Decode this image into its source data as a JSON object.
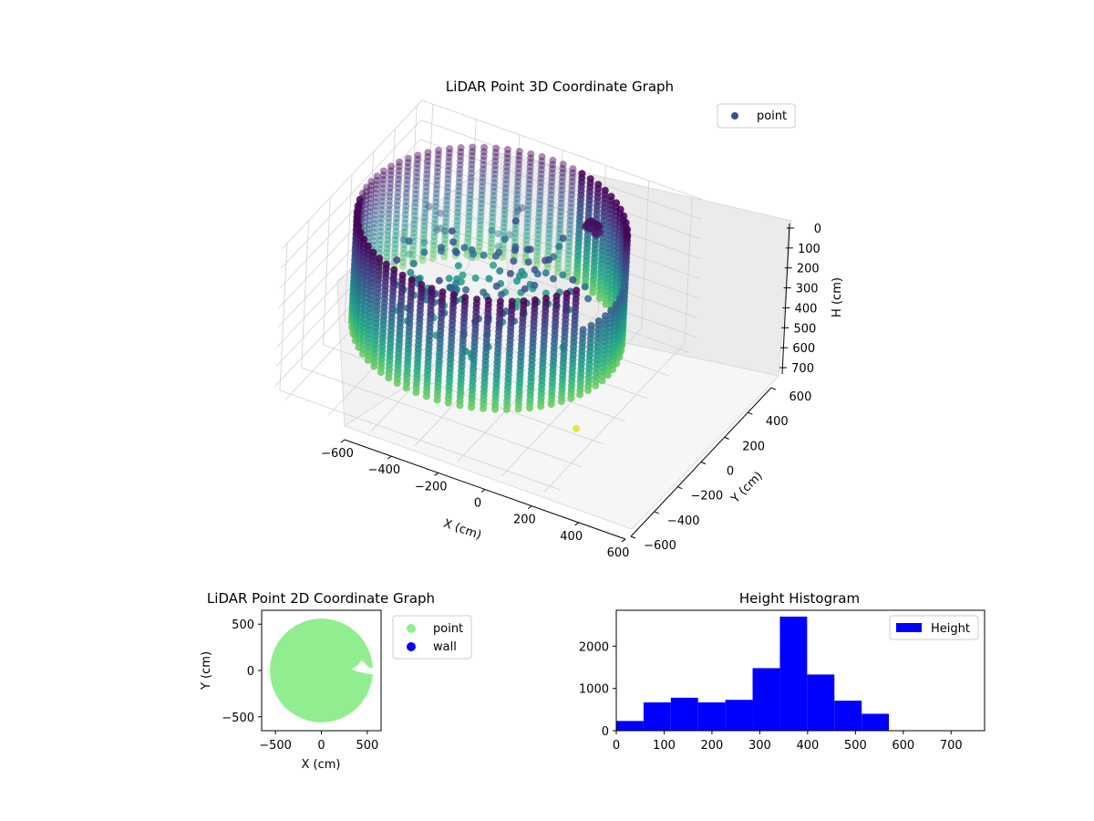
{
  "figure": {
    "background": "#ffffff"
  },
  "chart_data": [
    {
      "type": "scatter",
      "projection": "3d",
      "title": "LiDAR Point 3D Coordinate Graph",
      "xlabel": "X (cm)",
      "ylabel": "Y (cm)",
      "zlabel": "H (cm)",
      "x_ticks": [
        "−600",
        "−400",
        "−200",
        "0",
        "200",
        "400",
        "600"
      ],
      "y_ticks": [
        "−600",
        "−400",
        "−200",
        "0",
        "200",
        "400",
        "600"
      ],
      "z_ticks": [
        "0",
        "100",
        "200",
        "300",
        "400",
        "500",
        "600",
        "700"
      ],
      "xlim": [
        -650,
        650
      ],
      "ylim": [
        -650,
        650
      ],
      "zlim": [
        750,
        0
      ],
      "z_axis_inverted": true,
      "grid": true,
      "colormap": "viridis",
      "legend": {
        "entries": [
          "point"
        ],
        "placement": "upper-right",
        "marker_color": "#3b4f8a"
      },
      "structure": "points on a circular wall of radius about 560 cm around the sensor, spanning heights about 0 to 570 cm, plus a scattered interior cluster"
    },
    {
      "type": "scatter",
      "title": "LiDAR Point 2D Coordinate Graph",
      "xlabel": "X (cm)",
      "ylabel": "Y (cm)",
      "x_ticks": [
        "−500",
        "0",
        "500"
      ],
      "y_ticks": [
        "500",
        "0",
        "−500"
      ],
      "xlim": [
        -650,
        650
      ],
      "ylim": [
        -650,
        650
      ],
      "series": [
        {
          "name": "point",
          "color": "#90ee90",
          "shape": "filled disc of radius about 560 cm centred near (0, 0), with a small notch near x 300 to 600, y 0"
        },
        {
          "name": "wall",
          "color": "#0000ff"
        }
      ],
      "legend": {
        "placement": "outside right"
      }
    },
    {
      "type": "bar",
      "subtype": "histogram",
      "title": "Height Histogram",
      "x_ticks": [
        "0",
        "100",
        "200",
        "300",
        "400",
        "500",
        "600",
        "700"
      ],
      "y_ticks": [
        "0",
        "1000",
        "2000"
      ],
      "xlim": [
        0,
        770
      ],
      "ylim": [
        0,
        2850
      ],
      "bin_edges": [
        0,
        57,
        114,
        171,
        228,
        285,
        342,
        399,
        456,
        513,
        570
      ],
      "series": [
        {
          "name": "Height",
          "color": "#0000ff",
          "values": [
            230,
            670,
            780,
            670,
            730,
            1480,
            2700,
            1330,
            710,
            400
          ]
        }
      ],
      "legend": {
        "placement": "upper-right"
      }
    }
  ]
}
